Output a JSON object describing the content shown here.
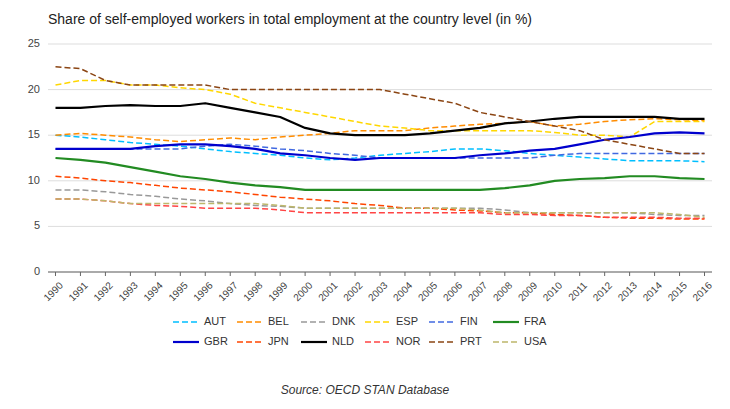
{
  "chart_data": {
    "type": "line",
    "title": "Share of self-employed workers in total employment at the country level (in %)",
    "annotations": [
      "Source: OECD STAN Database"
    ],
    "x": [
      1990,
      1991,
      1992,
      1993,
      1994,
      1995,
      1996,
      1997,
      1998,
      1999,
      2000,
      2001,
      2002,
      2003,
      2004,
      2005,
      2006,
      2007,
      2008,
      2009,
      2010,
      2011,
      2012,
      2013,
      2014,
      2015,
      2016
    ],
    "xlim": [
      1989.7,
      2016.3
    ],
    "xticks": [
      1990,
      1991,
      1992,
      1993,
      1994,
      1995,
      1996,
      1997,
      1998,
      1999,
      2000,
      2001,
      2002,
      2003,
      2004,
      2005,
      2006,
      2007,
      2008,
      2009,
      2010,
      2011,
      2012,
      2013,
      2014,
      2015,
      2016
    ],
    "ylim": [
      0,
      25
    ],
    "yticks": [
      0,
      5,
      10,
      15,
      20,
      25
    ],
    "grid": true,
    "legend": "bottom",
    "series": [
      {
        "name": "AUT",
        "color": "#00BFFF",
        "line_style": "dashed",
        "values": [
          15.0,
          14.8,
          14.5,
          14.2,
          14.0,
          13.8,
          13.5,
          13.2,
          13.0,
          12.8,
          12.5,
          12.3,
          12.5,
          12.8,
          13.0,
          13.2,
          13.5,
          13.5,
          13.3,
          13.0,
          12.8,
          12.6,
          12.4,
          12.2,
          12.2,
          12.2,
          12.1
        ]
      },
      {
        "name": "BEL",
        "color": "#FF8C00",
        "line_style": "dashed",
        "values": [
          15.0,
          15.2,
          15.0,
          14.8,
          14.5,
          14.3,
          14.5,
          14.7,
          14.5,
          14.8,
          15.0,
          15.2,
          15.5,
          15.5,
          15.5,
          15.8,
          16.0,
          16.2,
          16.3,
          16.5,
          16.0,
          16.2,
          16.5,
          16.7,
          16.8,
          16.7,
          16.6
        ]
      },
      {
        "name": "DNK",
        "color": "#999999",
        "line_style": "dashed",
        "values": [
          9.0,
          9.0,
          8.8,
          8.5,
          8.3,
          8.0,
          7.8,
          7.5,
          7.3,
          7.2,
          7.0,
          7.0,
          7.0,
          7.0,
          7.0,
          7.0,
          7.0,
          7.0,
          6.8,
          6.5,
          6.5,
          6.5,
          6.5,
          6.5,
          6.3,
          6.2,
          6.2
        ]
      },
      {
        "name": "ESP",
        "color": "#FFD700",
        "line_style": "dashed",
        "values": [
          20.5,
          21.0,
          21.0,
          20.5,
          20.5,
          20.2,
          20.0,
          19.5,
          18.5,
          18.0,
          17.5,
          17.0,
          16.5,
          16.0,
          15.8,
          15.5,
          15.5,
          15.5,
          15.5,
          15.5,
          15.3,
          15.0,
          15.0,
          14.8,
          16.5,
          16.5,
          16.5
        ]
      },
      {
        "name": "FIN",
        "color": "#4169E1",
        "line_style": "dashed",
        "values": [
          13.5,
          13.5,
          13.5,
          13.5,
          13.5,
          13.5,
          13.8,
          14.0,
          13.8,
          13.5,
          13.3,
          13.0,
          12.8,
          12.5,
          12.5,
          12.5,
          12.5,
          12.5,
          12.5,
          12.5,
          12.8,
          13.0,
          13.0,
          13.0,
          13.0,
          13.0,
          13.0
        ]
      },
      {
        "name": "FRA",
        "color": "#228B22",
        "line_style": "solid",
        "values": [
          12.5,
          12.3,
          12.0,
          11.5,
          11.0,
          10.5,
          10.2,
          9.8,
          9.5,
          9.3,
          9.0,
          9.0,
          9.0,
          9.0,
          9.0,
          9.0,
          9.0,
          9.0,
          9.2,
          9.5,
          10.0,
          10.2,
          10.3,
          10.5,
          10.5,
          10.3,
          10.2
        ]
      },
      {
        "name": "GBR",
        "color": "#0000CD",
        "line_style": "solid",
        "values": [
          13.5,
          13.5,
          13.5,
          13.5,
          13.8,
          14.0,
          14.0,
          13.8,
          13.5,
          13.0,
          12.8,
          12.5,
          12.3,
          12.5,
          12.5,
          12.5,
          12.5,
          12.8,
          13.0,
          13.3,
          13.5,
          14.0,
          14.5,
          14.8,
          15.2,
          15.3,
          15.2
        ]
      },
      {
        "name": "JPN",
        "color": "#FF4500",
        "line_style": "dashed",
        "values": [
          10.5,
          10.3,
          10.0,
          9.8,
          9.5,
          9.2,
          9.0,
          8.8,
          8.5,
          8.2,
          8.0,
          7.8,
          7.5,
          7.3,
          7.0,
          7.0,
          6.8,
          6.7,
          6.5,
          6.5,
          6.3,
          6.2,
          6.0,
          5.9,
          5.9,
          5.8,
          5.8
        ]
      },
      {
        "name": "NLD",
        "color": "#000000",
        "line_style": "solid",
        "values": [
          18.0,
          18.0,
          18.2,
          18.3,
          18.2,
          18.2,
          18.5,
          18.0,
          17.5,
          17.0,
          15.8,
          15.2,
          15.0,
          15.0,
          15.0,
          15.2,
          15.5,
          15.8,
          16.3,
          16.5,
          16.8,
          17.0,
          17.0,
          17.0,
          17.0,
          16.8,
          16.8
        ]
      },
      {
        "name": "NOR",
        "color": "#FF4444",
        "line_style": "dashed",
        "values": [
          8.0,
          8.0,
          7.8,
          7.5,
          7.3,
          7.2,
          7.0,
          7.0,
          7.0,
          6.8,
          6.5,
          6.5,
          6.5,
          6.5,
          6.5,
          6.5,
          6.5,
          6.5,
          6.3,
          6.3,
          6.2,
          6.2,
          6.0,
          6.0,
          6.0,
          5.9,
          5.9
        ]
      },
      {
        "name": "PRT",
        "color": "#8B4513",
        "line_style": "dashed",
        "values": [
          22.5,
          22.3,
          21.0,
          20.5,
          20.5,
          20.5,
          20.5,
          20.0,
          20.0,
          20.0,
          20.0,
          20.0,
          20.0,
          20.0,
          19.5,
          19.0,
          18.5,
          17.5,
          17.0,
          16.5,
          16.0,
          15.5,
          14.5,
          14.0,
          13.5,
          13.0,
          13.0
        ]
      },
      {
        "name": "USA",
        "color": "#BDB76B",
        "line_style": "dashed",
        "values": [
          8.0,
          8.0,
          7.8,
          7.5,
          7.5,
          7.5,
          7.5,
          7.5,
          7.5,
          7.3,
          7.0,
          7.0,
          7.0,
          7.0,
          7.0,
          7.0,
          7.0,
          6.8,
          6.5,
          6.5,
          6.5,
          6.5,
          6.5,
          6.5,
          6.5,
          6.3,
          6.0
        ]
      }
    ]
  }
}
